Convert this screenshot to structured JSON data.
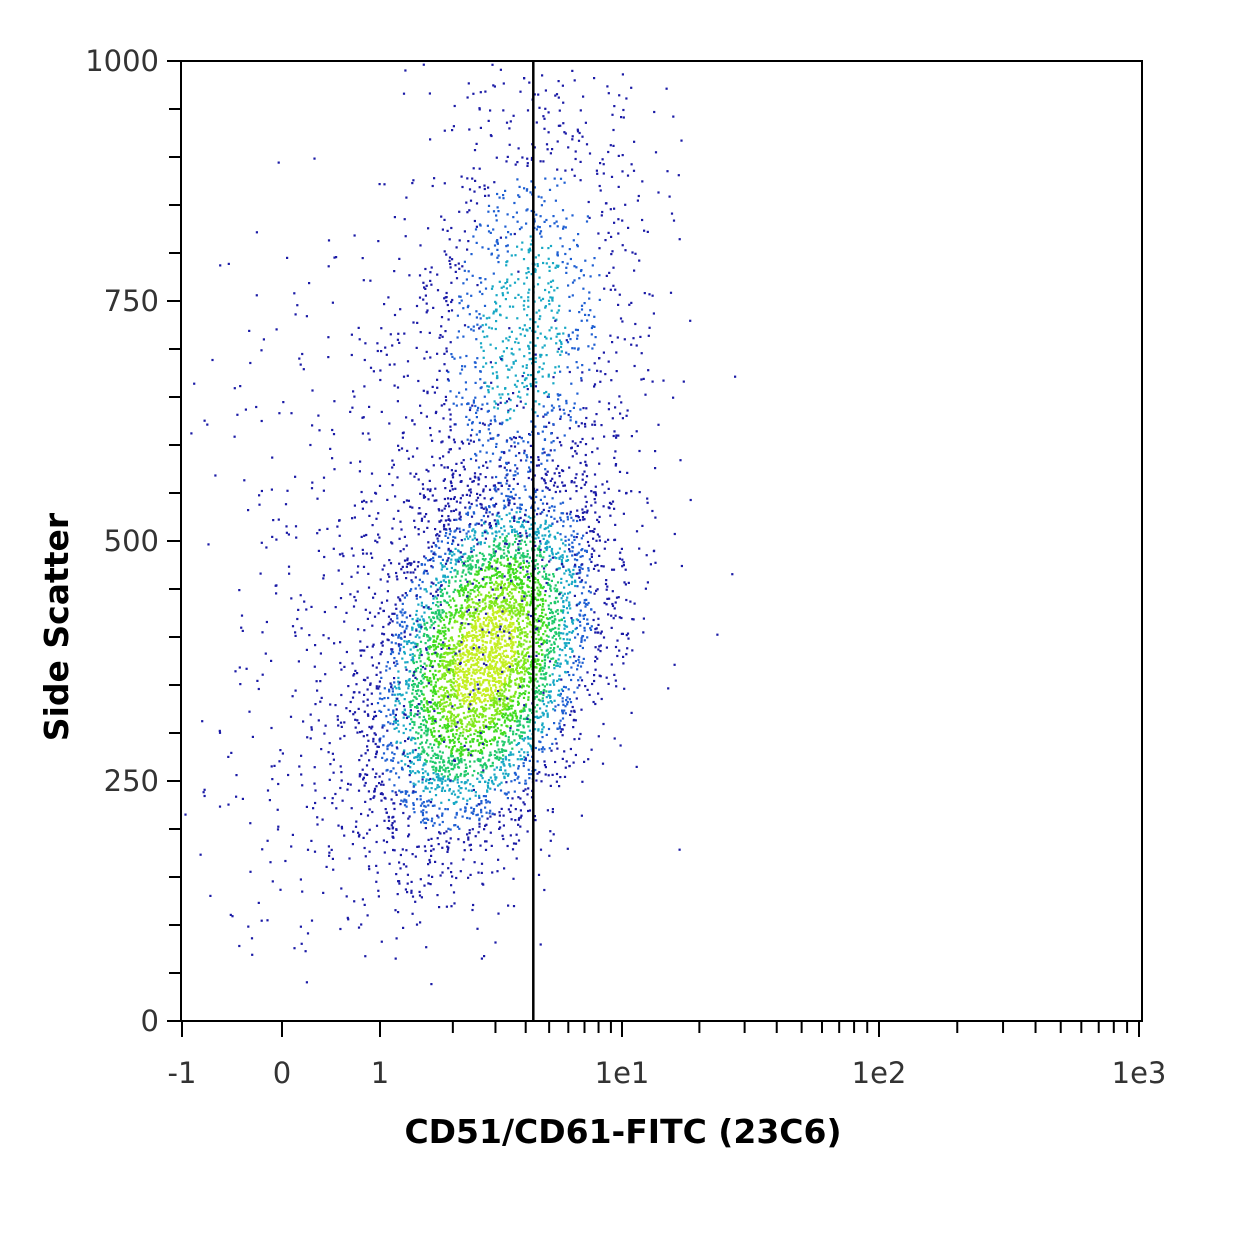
{
  "chart_data": {
    "type": "scatter",
    "plot_style": "density dot plot (flow cytometry)",
    "xlabel": "CD51/CD61-FITC (23C6)",
    "ylabel": "Side Scatter",
    "x_scale": "biexponential (linear near zero, log above)",
    "x_ticks": [
      "-1",
      "0",
      "1",
      "1e1",
      "1e2",
      "1e3"
    ],
    "x_tick_values": [
      -1,
      0,
      1,
      10,
      100,
      1000
    ],
    "y_ticks": [
      "0",
      "250",
      "500",
      "750",
      "1000"
    ],
    "y_tick_values": [
      0,
      250,
      500,
      750,
      1000
    ],
    "ylim": [
      0,
      1000
    ],
    "gate": {
      "type": "vertical line",
      "x": 4.3,
      "color": "#000000"
    },
    "populations": [
      {
        "description": "main dense cluster",
        "x_center": 2.7,
        "y_center": 380,
        "x_spread_decades": 0.22,
        "y_spread": 95,
        "tilt": 0.45
      },
      {
        "description": "upper diffuse tail",
        "x_center": 3.9,
        "y_center": 720,
        "x_spread_decades": 0.25,
        "y_spread": 140,
        "tilt": 0.2
      },
      {
        "description": "sparse left scatter",
        "x_center": 0.9,
        "y_center": 420,
        "x_spread_decades": 0.4,
        "y_spread": 200,
        "tilt": 0.1
      }
    ],
    "density_colors": [
      "#1a1aa6",
      "#1e5fd2",
      "#17a8c4",
      "#1fc96a",
      "#3fdc1e",
      "#7fe81a",
      "#c3ef22"
    ],
    "grid": false,
    "legend": "none"
  }
}
